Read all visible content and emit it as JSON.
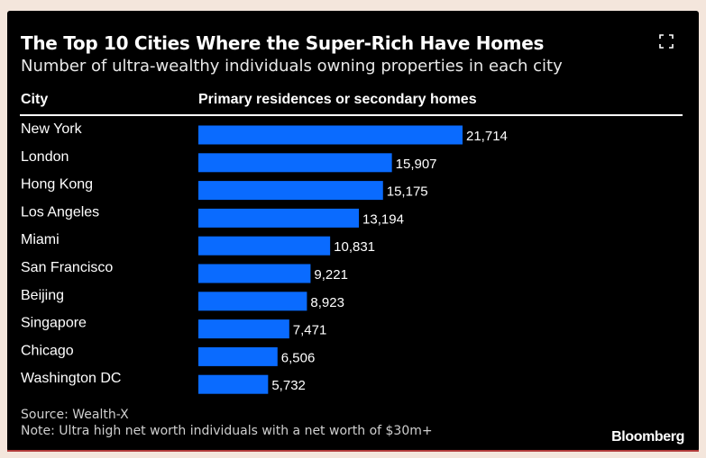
{
  "title": "The Top 10 Cities Where the Super-Rich Have Homes",
  "subtitle": "Number of ultra-wealthy individuals owning properties in each city",
  "columns": {
    "city": "City",
    "value": "Primary residences or secondary homes"
  },
  "source": "Source: Wealth-X",
  "note": "Note: Ultra high net worth individuals with a net worth of $30m+",
  "brand": "Bloomberg",
  "colors": {
    "bar": "#0a6bff",
    "background": "#000000",
    "text": "#ffffff"
  },
  "icons": {
    "expand": "expand-icon"
  },
  "chart_data": {
    "type": "bar",
    "orientation": "horizontal",
    "categories": [
      "New York",
      "London",
      "Hong Kong",
      "Los Angeles",
      "Miami",
      "San Francisco",
      "Beijing",
      "Singapore",
      "Chicago",
      "Washington DC"
    ],
    "values": [
      21714,
      15907,
      15175,
      13194,
      10831,
      9221,
      8923,
      7471,
      6506,
      5732
    ],
    "value_labels": [
      "21,714",
      "15,907",
      "15,175",
      "13,194",
      "10,831",
      "9,221",
      "8,923",
      "7,471",
      "6,506",
      "5,732"
    ],
    "xlabel": "Primary residences or secondary homes",
    "ylabel": "City",
    "xlim": [
      0,
      21714
    ],
    "grid": false,
    "legend": "none"
  }
}
